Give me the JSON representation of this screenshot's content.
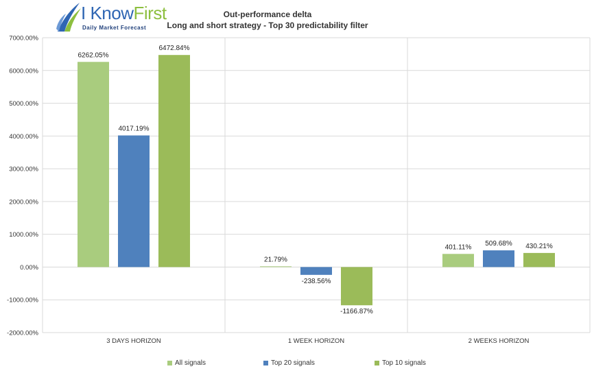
{
  "logo": {
    "text_main": "I Know",
    "text_accent": "First",
    "tagline": "Daily Market Forecast"
  },
  "colors": {
    "all_signals": "#a9cc7e",
    "top20": "#4f81bd",
    "top10": "#9bbb59",
    "grid": "#d9d9d9",
    "text": "#333333"
  },
  "chart_data": {
    "type": "bar",
    "title": "Out-performance delta",
    "subtitle": "Long and short strategy - Top 30 predictability filter",
    "categories": [
      "3 DAYS HORIZON",
      "1 WEEK HORIZON",
      "2 WEEKS HORIZON"
    ],
    "series": [
      {
        "name": "All signals",
        "values": [
          6262.05,
          21.79,
          401.11
        ],
        "labels": [
          "6262.05%",
          "21.79%",
          "401.11%"
        ],
        "color": "#a9cc7e"
      },
      {
        "name": "Top 20 signals",
        "values": [
          4017.19,
          -238.56,
          509.68
        ],
        "labels": [
          "4017.19%",
          "-238.56%",
          "509.68%"
        ],
        "color": "#4f81bd"
      },
      {
        "name": "Top 10 signals",
        "values": [
          6472.84,
          -1166.87,
          430.21
        ],
        "labels": [
          "6472.84%",
          "-1166.87%",
          "430.21%"
        ],
        "color": "#9bbb59"
      }
    ],
    "ylim": [
      -2000,
      7000
    ],
    "yticks": [
      7000,
      6000,
      5000,
      4000,
      3000,
      2000,
      1000,
      0,
      -1000,
      -2000
    ],
    "ytick_labels": [
      "7000.00%",
      "6000.00%",
      "5000.00%",
      "4000.00%",
      "3000.00%",
      "2000.00%",
      "1000.00%",
      "0.00%",
      "-1000.00%",
      "-2000.00%"
    ],
    "grid": true,
    "legend": "bottom"
  }
}
